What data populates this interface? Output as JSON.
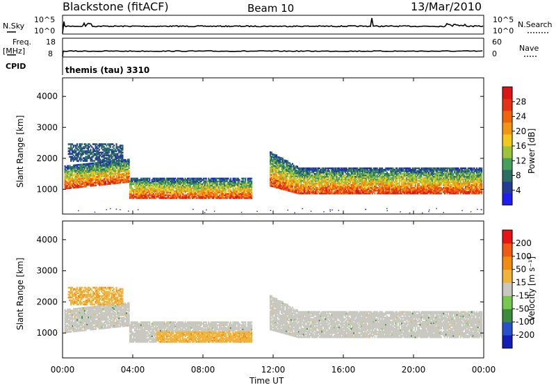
{
  "header": {
    "station": "Blackstone (fitACF)",
    "beam": "Beam 10",
    "date": "13/Mar/2010"
  },
  "top_panels": {
    "noise": {
      "left_label": "N.Sky",
      "left_ticks": [
        "10^5",
        "10^0"
      ],
      "right_ticks": [
        "10^5",
        "10^0"
      ],
      "right_label": "N.Search"
    },
    "freq": {
      "left_label_1": "Freq.",
      "left_label_2": "[MHz]",
      "left_ticks": [
        "18",
        "8"
      ],
      "right_ticks": [
        "60",
        "0"
      ],
      "right_label": "Nave"
    },
    "cpid": {
      "label": "CPID",
      "program": "themis (tau) 3310"
    }
  },
  "chart_data": [
    {
      "type": "heatmap",
      "panel": "power",
      "ylabel": "Slant Range [km]",
      "yticks": [
        1000,
        2000,
        3000,
        4000
      ],
      "ylim": [
        200,
        4600
      ],
      "xlim_hours": [
        0,
        24
      ],
      "colorbar": {
        "label": "Power [dB]",
        "ticks": [
          "4",
          "8",
          "12",
          "16",
          "20",
          "24",
          "28"
        ],
        "colors": [
          "#1e1ef0",
          "#233c96",
          "#2d6e64",
          "#46a05a",
          "#9bc43c",
          "#f0c81e",
          "#f09614",
          "#f0640f",
          "#e63214",
          "#dc1414"
        ],
        "range": [
          0,
          30
        ]
      }
    },
    {
      "type": "heatmap",
      "panel": "velocity",
      "ylabel": "Slant Range [km]",
      "yticks": [
        1000,
        2000,
        3000,
        4000
      ],
      "ylim": [
        200,
        4600
      ],
      "xlim_hours": [
        0,
        24
      ],
      "xticks": [
        "00:00",
        "04:00",
        "08:00",
        "12:00",
        "16:00",
        "20:00",
        "00:00"
      ],
      "xlabel": "Time UT",
      "colorbar": {
        "label": "Velocity [m s⁻¹]",
        "ticks": [
          "200",
          "100",
          "50",
          "15",
          "-15",
          "-50",
          "-100",
          "-200"
        ],
        "colors": [
          "#141eb4",
          "#2850c8",
          "#3c8c3c",
          "#78c850",
          "#c8c8c0",
          "#f0b43c",
          "#f08c14",
          "#f05a14",
          "#e61414"
        ]
      }
    }
  ]
}
